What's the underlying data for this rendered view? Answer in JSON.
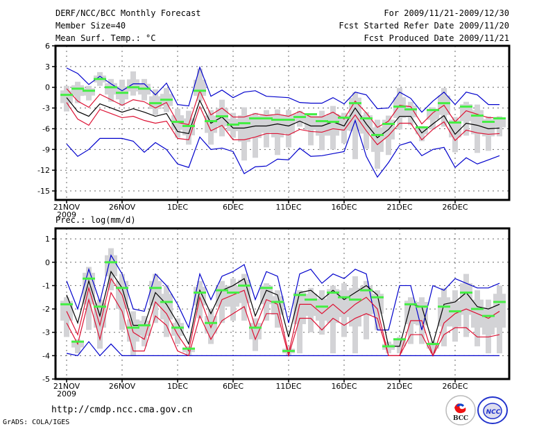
{
  "header": {
    "title": "DERF/NCC/BCC Monthly Forecast",
    "member_size": "Member Size=40",
    "variable": "Mean Surf. Temp.: °C",
    "period": "For 2009/11/21-2009/12/30",
    "started": "Fcst Started Refer Date 2009/11/20",
    "produced": "Fcst Produced Date 2009/11/21"
  },
  "footer": {
    "url": "http://cmdp.ncc.cma.gov.cn",
    "credit": "GrADS: COLA/IGES",
    "logo_bcc": "BCC",
    "logo_ncc": "NCC"
  },
  "colors": {
    "max_min": "#0000cc",
    "quartile": "#dd1133",
    "mean": "#000000",
    "box": "#d3d3d6",
    "median": "#44ee44"
  },
  "chart_data": [
    {
      "type": "line",
      "title": "Mean Surf. Temp.: °C",
      "xlabel": "",
      "ylabel": "",
      "ylim": [
        -16.3,
        6
      ],
      "yticks": [
        6,
        3,
        0,
        -3,
        -6,
        -9,
        -12,
        -15
      ],
      "ytick_labels": [
        "6",
        "3",
        "0",
        "-3",
        "-6",
        "-9",
        "-12",
        "-15"
      ],
      "xtick_days": [
        0,
        5,
        10,
        15,
        20,
        25,
        30,
        35
      ],
      "xtick_labels": [
        "21NOV",
        "26NOV",
        "1DEC",
        "6DEC",
        "11DEC",
        "16DEC",
        "21DEC",
        "26DEC"
      ],
      "xtick_sublabel": "2009",
      "grid": true,
      "series": [
        {
          "name": "max",
          "values": [
            2.8,
            2.0,
            0.4,
            1.6,
            0.5,
            -0.5,
            0.5,
            0.5,
            -1.1,
            0.6,
            -2.5,
            -2.7,
            2.9,
            -1.3,
            -0.4,
            -1.5,
            -0.7,
            -0.5,
            -1.3,
            -1.4,
            -1.5,
            -2.2,
            -2.3,
            -2.3,
            -1.5,
            -2.4,
            -0.7,
            -1.1,
            -3.1,
            -3.0,
            -0.7,
            -1.6,
            -3.6,
            -2.0,
            -0.7,
            -2.5,
            -0.7,
            -1.1,
            -2.5,
            -2.5
          ]
        },
        {
          "name": "upper",
          "values": [
            -0.2,
            -2.0,
            -2.9,
            -1.0,
            -1.8,
            -2.6,
            -1.8,
            -2.1,
            -3.0,
            -2.2,
            -5.1,
            -5.4,
            -0.5,
            -4.0,
            -3.0,
            -4.3,
            -4.3,
            -3.8,
            -4.1,
            -3.9,
            -4.2,
            -3.5,
            -4.3,
            -4.3,
            -3.6,
            -4.6,
            -2.0,
            -3.7,
            -5.8,
            -4.9,
            -2.6,
            -2.8,
            -5.3,
            -3.7,
            -2.6,
            -5.0,
            -3.4,
            -3.9,
            -4.4,
            -4.4
          ]
        },
        {
          "name": "mean",
          "values": [
            -1.5,
            -3.5,
            -4.2,
            -2.4,
            -3.0,
            -3.6,
            -3.1,
            -3.6,
            -4.2,
            -3.8,
            -6.4,
            -6.7,
            -1.9,
            -5.2,
            -4.3,
            -5.9,
            -5.9,
            -5.6,
            -5.6,
            -5.3,
            -5.6,
            -4.9,
            -5.6,
            -5.6,
            -5.0,
            -5.6,
            -3.0,
            -5.3,
            -7.3,
            -6.1,
            -4.2,
            -4.2,
            -6.6,
            -5.3,
            -4.1,
            -6.8,
            -5.2,
            -5.5,
            -6.0,
            -5.9
          ]
        },
        {
          "name": "lower",
          "values": [
            -2.2,
            -4.6,
            -5.5,
            -3.2,
            -3.8,
            -4.4,
            -4.2,
            -4.8,
            -5.2,
            -4.9,
            -7.4,
            -7.6,
            -2.8,
            -6.3,
            -5.5,
            -7.6,
            -7.6,
            -7.2,
            -6.7,
            -6.7,
            -6.9,
            -6.1,
            -6.4,
            -6.5,
            -6.0,
            -6.2,
            -4.0,
            -6.3,
            -8.3,
            -7.0,
            -5.2,
            -5.2,
            -7.6,
            -6.1,
            -5.0,
            -7.7,
            -6.2,
            -6.6,
            -6.8,
            -6.7
          ]
        },
        {
          "name": "min",
          "values": [
            -8.2,
            -10.0,
            -9.0,
            -7.4,
            -7.4,
            -7.4,
            -7.8,
            -9.4,
            -8.0,
            -9.0,
            -11.1,
            -11.6,
            -7.2,
            -9.0,
            -8.8,
            -9.3,
            -12.5,
            -11.5,
            -11.4,
            -10.4,
            -10.5,
            -8.8,
            -10.0,
            -9.9,
            -9.6,
            -9.3,
            -4.8,
            -10.0,
            -13.0,
            -10.9,
            -8.4,
            -7.9,
            -9.9,
            -9.0,
            -8.7,
            -11.6,
            -10.2,
            -11.1,
            -10.5,
            -9.9
          ]
        },
        {
          "name": "median",
          "values": [
            -1.1,
            -0.2,
            -0.5,
            1.2,
            0.0,
            -0.8,
            0.0,
            -0.2,
            -2.3,
            -1.8,
            -5.0,
            -5.6,
            -0.5,
            -4.9,
            -4.2,
            -5.4,
            -5.2,
            -4.5,
            -4.5,
            -4.7,
            -4.7,
            -4.3,
            -3.9,
            -4.9,
            -5.0,
            -4.4,
            -2.3,
            -4.5,
            -6.9,
            -5.3,
            -2.8,
            -3.2,
            -5.8,
            -3.3,
            -2.3,
            -5.1,
            -2.8,
            -4.1,
            -5.0,
            -4.5
          ]
        },
        {
          "name": "box_low",
          "values": [
            -3.5,
            -2.3,
            -1.9,
            0.2,
            -2.1,
            -2.7,
            -1.2,
            -1.9,
            -4.0,
            -3.6,
            -7.3,
            -8.3,
            -2.0,
            -8.3,
            -7.1,
            -7.3,
            -10.6,
            -10.2,
            -8.7,
            -9.8,
            -8.7,
            -5.7,
            -8.4,
            -9.1,
            -9.0,
            -8.1,
            -10.4,
            -8.9,
            -11.8,
            -9.8,
            -6.1,
            -5.5,
            -7.8,
            -6.1,
            -5.7,
            -9.4,
            -7.0,
            -9.5,
            -9.2,
            -7.1
          ]
        },
        {
          "name": "box_high",
          "values": [
            0.2,
            0.8,
            0.2,
            2.2,
            1.2,
            1.1,
            2.3,
            1.2,
            -0.3,
            -0.1,
            -3.1,
            -3.4,
            2.7,
            -3.3,
            -1.8,
            -3.7,
            -2.9,
            -3.7,
            -3.3,
            -3.2,
            -3.3,
            -3.4,
            -4.3,
            -3.4,
            -2.7,
            -3.7,
            -0.7,
            -3.6,
            -4.7,
            -4.1,
            -0.1,
            -2.1,
            -5.6,
            -2.9,
            -0.1,
            -4.3,
            -2.1,
            -2.5,
            -4.2,
            -4.2
          ]
        }
      ]
    },
    {
      "type": "line",
      "title": "Prec.: log(mm/d)",
      "xlabel": "",
      "ylabel": "",
      "ylim": [
        -5,
        1.45
      ],
      "yticks": [
        1,
        0,
        -1,
        -2,
        -3,
        -4,
        -5
      ],
      "ytick_labels": [
        "1",
        "0",
        "-1",
        "-2",
        "-3",
        "-4",
        "-5"
      ],
      "xtick_days": [
        0,
        5,
        10,
        15,
        20,
        25,
        30,
        35
      ],
      "xtick_labels": [
        "21NOV",
        "26NOV",
        "1DEC",
        "6DEC",
        "11DEC",
        "16DEC",
        "21DEC",
        "26DEC"
      ],
      "xtick_sublabel": "2009",
      "grid": true,
      "series": [
        {
          "name": "max",
          "values": [
            -0.8,
            -2.0,
            -0.3,
            -1.7,
            0.3,
            -0.5,
            -2.0,
            -2.1,
            -0.5,
            -1.0,
            -1.8,
            -2.8,
            -0.5,
            -1.6,
            -0.6,
            -0.4,
            -0.1,
            -1.6,
            -0.4,
            -0.6,
            -2.6,
            -0.5,
            -0.3,
            -0.9,
            -0.5,
            -0.7,
            -0.3,
            -0.5,
            -2.9,
            -2.9,
            -1.0,
            -1.0,
            -2.9,
            -1.0,
            -1.2,
            -0.7,
            -0.9,
            -1.1,
            -1.1,
            -0.9
          ]
        },
        {
          "name": "mean",
          "values": [
            -1.4,
            -2.6,
            -0.8,
            -2.3,
            -0.4,
            -1.1,
            -2.7,
            -2.7,
            -1.3,
            -1.8,
            -2.6,
            -3.5,
            -1.2,
            -2.2,
            -1.2,
            -1.0,
            -0.7,
            -2.3,
            -1.2,
            -1.4,
            -3.2,
            -1.3,
            -1.2,
            -1.6,
            -1.2,
            -1.6,
            -1.3,
            -1.0,
            -1.4,
            -3.6,
            -3.6,
            -1.8,
            -1.9,
            -3.5,
            -1.8,
            -1.7,
            -1.3,
            -1.9,
            -2.0,
            -1.8
          ]
        },
        {
          "name": "upper",
          "values": [
            -2.1,
            -3.1,
            -1.1,
            -2.7,
            -0.7,
            -1.4,
            -3.0,
            -3.3,
            -1.7,
            -2.2,
            -3.1,
            -3.8,
            -1.5,
            -2.8,
            -1.6,
            -1.4,
            -1.2,
            -2.8,
            -1.6,
            -1.8,
            -3.9,
            -1.8,
            -1.8,
            -2.2,
            -1.8,
            -2.2,
            -1.8,
            -1.5,
            -2.0,
            -4.0,
            -4.0,
            -2.5,
            -2.5,
            -4.0,
            -2.6,
            -2.2,
            -2.0,
            -2.2,
            -2.4,
            -2.1
          ]
        },
        {
          "name": "lower",
          "values": [
            -2.6,
            -3.5,
            -1.6,
            -3.3,
            -1.3,
            -2.1,
            -3.8,
            -3.8,
            -2.3,
            -2.7,
            -3.8,
            -4.0,
            -2.3,
            -3.3,
            -2.5,
            -2.2,
            -1.9,
            -3.3,
            -2.2,
            -2.2,
            -4.0,
            -2.4,
            -2.4,
            -2.9,
            -2.4,
            -2.7,
            -2.4,
            -2.2,
            -2.4,
            -4.0,
            -4.0,
            -3.1,
            -3.1,
            -4.0,
            -3.1,
            -2.8,
            -2.8,
            -3.2,
            -3.2,
            -3.1
          ]
        },
        {
          "name": "min",
          "values": [
            -3.9,
            -4.0,
            -3.4,
            -4.0,
            -3.5,
            -4.0,
            -4.0,
            -4.0,
            -4.0,
            -4.0,
            -4.0,
            -4.0,
            -4.0,
            -4.0,
            -4.0,
            -4.0,
            -4.0,
            -4.0,
            -4.0,
            -4.0,
            -4.0,
            -4.0,
            -4.0,
            -4.0,
            -4.0,
            -4.0,
            -4.0,
            -4.0,
            -4.0,
            -4.0,
            -4.0,
            -4.0,
            -4.0,
            -4.0,
            -4.0,
            -4.0,
            -4.0,
            -4.0,
            -4.0,
            -4.0
          ]
        },
        {
          "name": "median",
          "values": [
            -1.8,
            -3.4,
            -0.7,
            -1.9,
            0.0,
            -1.1,
            -2.8,
            -2.7,
            -1.1,
            -1.7,
            -2.8,
            -3.7,
            -1.3,
            -2.6,
            -1.2,
            -1.3,
            -1.0,
            -2.8,
            -1.1,
            -1.7,
            -3.8,
            -1.4,
            -1.6,
            -1.9,
            -1.3,
            -1.5,
            -1.6,
            -1.2,
            -1.5,
            -3.6,
            -3.3,
            -1.8,
            -1.9,
            -3.5,
            -1.9,
            -2.1,
            -1.3,
            -2.0,
            -2.3,
            -1.7
          ]
        },
        {
          "name": "box_low",
          "values": [
            -3.2,
            -3.9,
            -2.9,
            -3.7,
            -1.2,
            -2.9,
            -4.0,
            -3.6,
            -2.6,
            -3.2,
            -3.5,
            -4.0,
            -2.4,
            -3.5,
            -2.6,
            -2.5,
            -2.5,
            -3.8,
            -2.5,
            -2.8,
            -4.0,
            -3.9,
            -3.0,
            -3.1,
            -3.9,
            -3.2,
            -3.9,
            -3.3,
            -2.9,
            -3.9,
            -3.9,
            -3.5,
            -3.5,
            -3.9,
            -3.6,
            -3.4,
            -3.2,
            -3.6,
            -3.9,
            -3.9
          ]
        },
        {
          "name": "box_high",
          "values": [
            -1.5,
            -3.3,
            -0.2,
            -1.6,
            0.6,
            -0.5,
            -2.1,
            -2.3,
            -0.5,
            -1.0,
            -2.4,
            -3.6,
            -0.8,
            -2.0,
            -0.8,
            -0.7,
            -0.5,
            -2.4,
            -0.9,
            -1.2,
            -3.6,
            -1.2,
            -1.1,
            -1.2,
            -1.0,
            -0.9,
            -0.6,
            -0.8,
            -1.2,
            -3.4,
            -3.2,
            -1.5,
            -1.5,
            -3.4,
            -1.1,
            -1.2,
            -0.5,
            -1.2,
            -1.6,
            -1.0
          ]
        }
      ]
    }
  ]
}
